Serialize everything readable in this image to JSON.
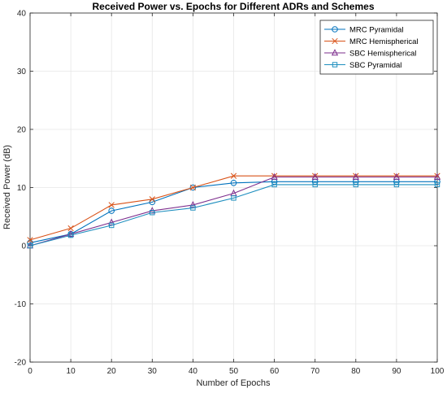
{
  "chart_data": {
    "type": "line",
    "title": "Received Power vs. Epochs for Different ADRs and Schemes",
    "xlabel": "Number of Epochs",
    "ylabel": "Received Power (dB)",
    "xlim": [
      0,
      100
    ],
    "ylim": [
      -20,
      40
    ],
    "xticks": [
      0,
      10,
      20,
      30,
      40,
      50,
      60,
      70,
      80,
      90,
      100
    ],
    "yticks": [
      -20,
      -10,
      0,
      10,
      20,
      30,
      40
    ],
    "grid": true,
    "legend_position": "top-right",
    "x": [
      0,
      10,
      20,
      30,
      40,
      50,
      60,
      70,
      80,
      90,
      100
    ],
    "series": [
      {
        "name": "MRC Pyramidal",
        "marker": "circle",
        "color": "#0072BD",
        "values": [
          0.5,
          2.0,
          6.0,
          7.5,
          10.0,
          10.8,
          11.0,
          11.0,
          11.0,
          11.0,
          11.0
        ]
      },
      {
        "name": "MRC Hemispherical",
        "marker": "x",
        "color": "#D95319",
        "values": [
          1.0,
          3.0,
          7.0,
          8.0,
          10.0,
          12.0,
          12.0,
          12.0,
          12.0,
          12.0,
          12.0
        ]
      },
      {
        "name": "SBC Hemispherical",
        "marker": "triangle",
        "color": "#7E2F8E",
        "values": [
          0.0,
          2.0,
          4.0,
          6.0,
          7.0,
          9.0,
          11.8,
          11.8,
          11.8,
          11.8,
          11.8
        ]
      },
      {
        "name": "SBC Pyramidal",
        "marker": "square",
        "color": "#1F8FBF",
        "values": [
          0.0,
          1.8,
          3.5,
          5.7,
          6.5,
          8.2,
          10.5,
          10.5,
          10.5,
          10.5,
          10.5
        ]
      }
    ]
  }
}
